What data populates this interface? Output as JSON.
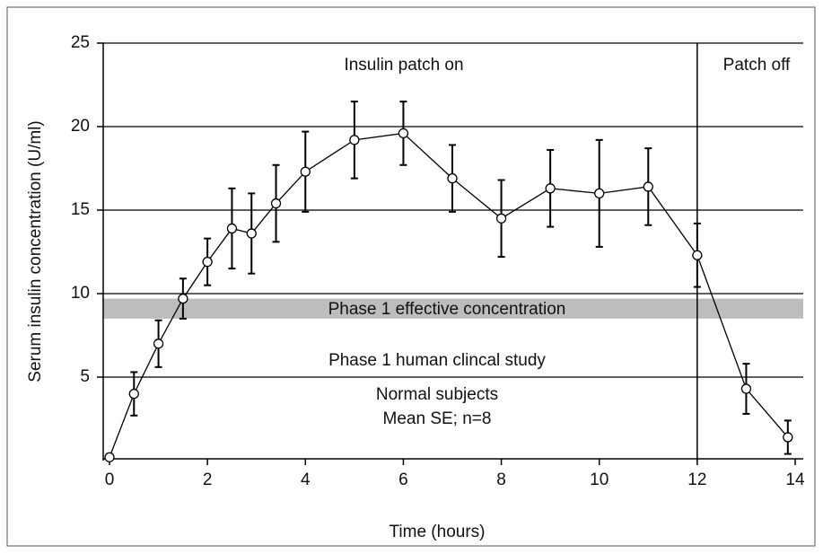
{
  "chart_data": {
    "type": "line",
    "x_label": "Time (hours)",
    "y_label": "Serum insulin concentration (U/ml)",
    "x": [
      0,
      0.5,
      1,
      1.5,
      2,
      2.5,
      2.9,
      3.4,
      4,
      5,
      6,
      7,
      8,
      9,
      10,
      11,
      12,
      13,
      13.85
    ],
    "series": [
      {
        "color": "#000000",
        "values": [
          0.2,
          4.0,
          7.0,
          9.7,
          11.9,
          13.9,
          13.6,
          15.4,
          17.3,
          19.2,
          19.6,
          16.9,
          14.5,
          16.3,
          16.0,
          16.4,
          12.3,
          4.3,
          1.4
        ],
        "errors": [
          null,
          1.3,
          1.4,
          1.2,
          1.4,
          2.4,
          2.4,
          2.3,
          2.4,
          2.3,
          1.9,
          2.0,
          2.3,
          2.3,
          3.2,
          2.3,
          1.9,
          1.5,
          1.0
        ]
      }
    ],
    "xlim": [
      0,
      14
    ],
    "xticks": [
      0,
      2,
      4,
      6,
      8,
      10,
      12,
      14
    ],
    "ylim": [
      0,
      25
    ],
    "yticks": [
      5,
      10,
      15,
      20,
      25
    ],
    "grid": true,
    "vline": 12,
    "band": {
      "label": "Phase 1 effective concentration",
      "range": [
        8.5,
        9.7
      ],
      "color": "#bdbdbd"
    },
    "annotations": [
      "Insulin patch on",
      "Patch off",
      "Phase 1 human clincal study",
      "Normal subjects",
      "Mean SE; n=8"
    ]
  }
}
